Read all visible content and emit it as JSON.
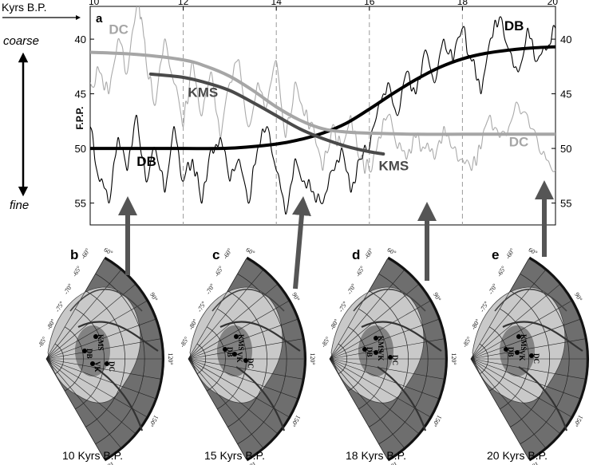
{
  "chart_data": {
    "type": "line",
    "panel_label": "a",
    "x_axis_title": "Kyrs B.P.",
    "ylabel": "F.P.P.",
    "x_ticks": [
      "10",
      "12",
      "14",
      "16",
      "18",
      "20"
    ],
    "xlim": [
      10,
      20
    ],
    "y_ticks": [
      "40",
      "45",
      "50",
      "55"
    ],
    "ylim": [
      37,
      57
    ],
    "grid_x": [
      12,
      14,
      16,
      18
    ],
    "arrow_top_label": "coarse",
    "arrow_bottom_label": "fine",
    "series": [
      {
        "name": "DC (raw)",
        "color": "#aaaaaa",
        "x": [
          10.0,
          10.2,
          10.4,
          10.6,
          10.8,
          11.0,
          11.1,
          11.2,
          11.4,
          11.6,
          11.8,
          12.0,
          12.2,
          12.4,
          12.6,
          12.8,
          13.0,
          13.2,
          13.4,
          13.6,
          13.8,
          14.0,
          14.2,
          14.4,
          14.6,
          14.8,
          15.0,
          15.2,
          15.4,
          15.6,
          15.8,
          16.0,
          16.2,
          16.4,
          16.6,
          16.8,
          17.0,
          17.2,
          17.4,
          17.6,
          17.8,
          18.0,
          18.2,
          18.4,
          18.6,
          18.8,
          19.0,
          19.2,
          19.4,
          19.6,
          19.8,
          20.0
        ],
        "values": [
          44,
          43,
          45,
          40,
          43,
          37,
          38,
          42,
          46,
          40,
          44,
          48,
          42,
          47,
          43,
          49,
          44,
          42,
          48,
          44,
          46,
          42,
          49,
          44,
          47,
          48,
          52,
          48,
          50,
          47,
          51,
          52,
          49,
          47,
          50,
          51,
          49,
          50,
          51,
          48,
          50,
          51,
          52,
          50,
          47,
          49,
          48,
          46,
          47,
          49,
          51,
          52
        ]
      },
      {
        "name": "DB (raw)",
        "color": "#000000",
        "x": [
          10.0,
          10.2,
          10.4,
          10.6,
          10.8,
          11.0,
          11.2,
          11.4,
          11.6,
          11.8,
          12.0,
          12.2,
          12.4,
          12.6,
          12.8,
          13.0,
          13.2,
          13.4,
          13.6,
          13.8,
          14.0,
          14.2,
          14.4,
          14.6,
          14.8,
          15.0,
          15.2,
          15.4,
          15.6,
          15.8,
          16.0,
          16.2,
          16.4,
          16.6,
          16.8,
          17.0,
          17.2,
          17.4,
          17.6,
          17.8,
          18.0,
          18.2,
          18.4,
          18.6,
          18.8,
          19.0,
          19.2,
          19.4,
          19.6,
          19.8,
          20.0
        ],
        "values": [
          48,
          53,
          55,
          49,
          52,
          47,
          53,
          50,
          54,
          48,
          53,
          51,
          55,
          50,
          49,
          53,
          51,
          55,
          50,
          48,
          52,
          56,
          51,
          53,
          54,
          55,
          52,
          50,
          54,
          51,
          50,
          46,
          44,
          47,
          43,
          45,
          41,
          44,
          40,
          42,
          39,
          42,
          45,
          40,
          38,
          41,
          43,
          39,
          42,
          41,
          39
        ]
      },
      {
        "name": "DB",
        "color": "#000000",
        "smooth": true,
        "x": [
          10,
          11,
          12,
          13,
          14,
          14.5,
          15,
          15.5,
          16,
          16.5,
          17,
          17.5,
          18,
          18.5,
          19,
          19.5,
          20
        ],
        "values": [
          50.0,
          50.0,
          50.0,
          49.98,
          49.6,
          49.2,
          48.6,
          47.7,
          46.4,
          45.0,
          43.7,
          42.6,
          41.8,
          41.3,
          41.0,
          40.8,
          40.7
        ]
      },
      {
        "name": "DC",
        "color": "#a6a6a6",
        "smooth": true,
        "x": [
          10,
          11,
          12,
          12.5,
          13,
          13.5,
          14,
          14.5,
          15,
          15.5,
          16,
          17,
          18,
          19,
          20
        ],
        "values": [
          41.2,
          41.4,
          41.9,
          42.5,
          43.4,
          44.7,
          46.2,
          47.4,
          48.2,
          48.5,
          48.6,
          48.7,
          48.7,
          48.7,
          48.7
        ]
      },
      {
        "name": "KMS",
        "color": "#4a4a4a",
        "smooth": true,
        "x": [
          11.3,
          12.0,
          12.5,
          13.0,
          13.5,
          14.0,
          14.5,
          15.0,
          15.5,
          16.0,
          16.3
        ],
        "values": [
          43.2,
          43.5,
          44.0,
          44.7,
          45.8,
          47.0,
          48.2,
          49.1,
          49.8,
          50.3,
          50.5
        ]
      }
    ],
    "labels": [
      {
        "text": "DC",
        "series": "DC",
        "x": 10.4,
        "y": 39.5,
        "color": "#a6a6a6"
      },
      {
        "text": "DC",
        "series": "DC",
        "x": 19.0,
        "y": 49.8,
        "color": "#a6a6a6"
      },
      {
        "text": "DB",
        "series": "DB",
        "x": 18.9,
        "y": 39.2,
        "color": "#000000"
      },
      {
        "text": "DB",
        "series": "DB",
        "x": 11.0,
        "y": 51.6,
        "color": "#000000"
      },
      {
        "text": "KMS",
        "series": "KMS",
        "x": 12.1,
        "y": 45.3,
        "color": "#4a4a4a"
      },
      {
        "text": "KMS",
        "series": "KMS",
        "x": 16.2,
        "y": 52.0,
        "color": "#4a4a4a"
      }
    ]
  },
  "maps": [
    {
      "panel": "b",
      "caption": "10 Kyrs B.P.",
      "site_layout": "b"
    },
    {
      "panel": "c",
      "caption": "15 Kyrs B.P.",
      "site_layout": "c"
    },
    {
      "panel": "d",
      "caption": "18 Kyrs B.P.",
      "site_layout": "d"
    },
    {
      "panel": "e",
      "caption": "20 Kyrs B.P.",
      "site_layout": "e"
    }
  ],
  "map_labels": {
    "latitudes": [
      "-60°",
      "-65°",
      "-70°",
      "-75°",
      "-80°",
      "-85°"
    ],
    "longitudes": [
      "60°",
      "90°",
      "120°",
      "150°",
      "180°"
    ],
    "sites": [
      "KMS",
      "DB",
      "VK",
      "DC"
    ]
  },
  "colors": {
    "ocean": "#6e6e6e",
    "ice": "#c9c9c9",
    "basin": "#7a7a7a",
    "arrow": "#555555"
  }
}
